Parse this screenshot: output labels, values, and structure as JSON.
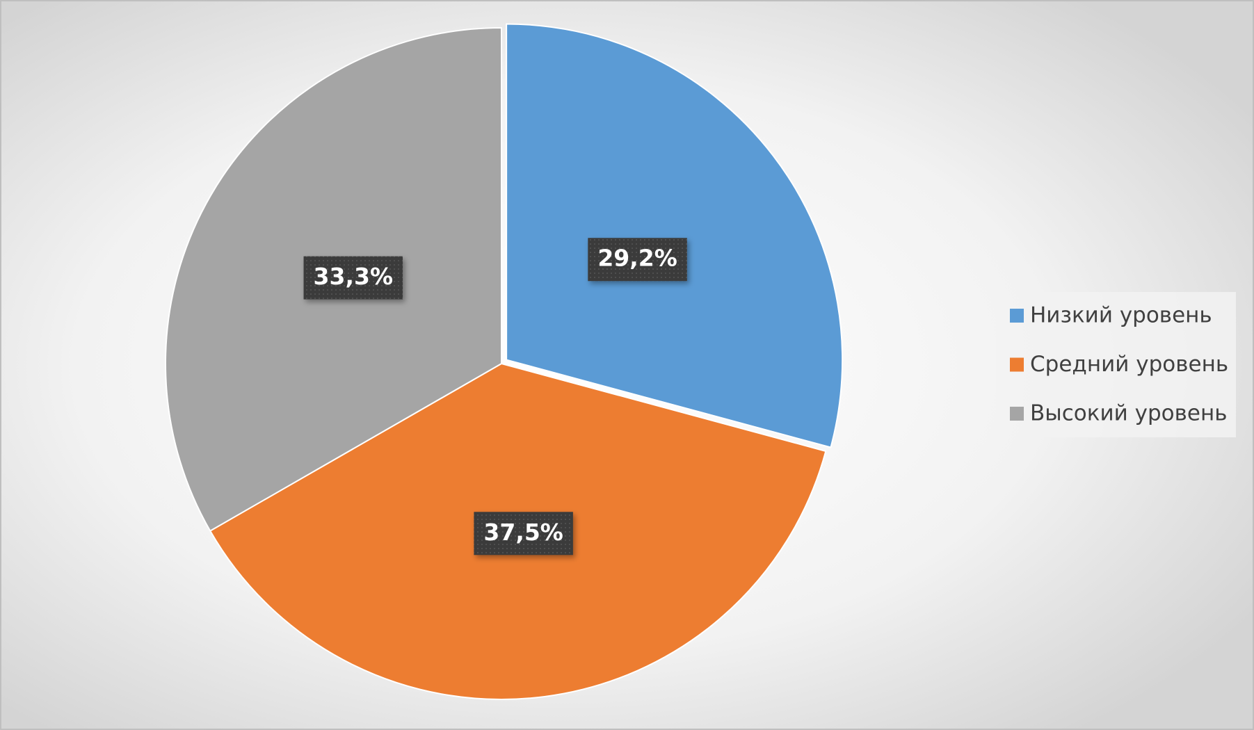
{
  "chart_data": {
    "type": "pie",
    "categories": [
      "Низкий уровень",
      "Средний уровень",
      "Высокий уровень"
    ],
    "values": [
      29.2,
      37.5,
      33.3
    ],
    "value_labels": [
      "29,2%",
      "37,5%",
      "33,3%"
    ],
    "colors": [
      "#5b9bd5",
      "#ed7d31",
      "#a5a5a5"
    ],
    "legend": "right"
  }
}
